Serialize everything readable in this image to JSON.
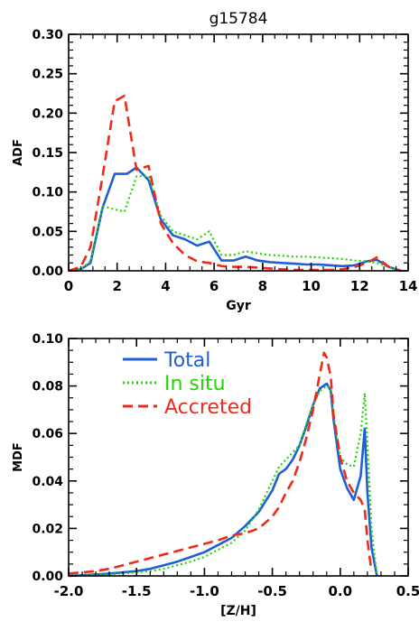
{
  "chart_data": [
    {
      "type": "line",
      "title": "g15784",
      "xlabel": "Gyr",
      "ylabel": "ADF",
      "xlim": [
        0,
        14
      ],
      "ylim": [
        0,
        0.3
      ],
      "xticks": [
        "0",
        "2",
        "4",
        "6",
        "8",
        "10",
        "12",
        "14"
      ],
      "yticks": [
        "0.00",
        "0.05",
        "0.10",
        "0.15",
        "0.20",
        "0.25",
        "0.30"
      ],
      "grid": false,
      "series": [
        {
          "name": "Total",
          "color": "#1f5fd4",
          "dash": "solid",
          "x": [
            0,
            0.5,
            0.9,
            1.4,
            1.9,
            2.4,
            2.8,
            3.3,
            3.8,
            4.3,
            4.8,
            5.3,
            5.8,
            6.3,
            6.8,
            7.3,
            7.8,
            8.3,
            8.8,
            9.3,
            9.8,
            10.3,
            10.8,
            11.3,
            11.8,
            12.3,
            12.7,
            13.2,
            13.7
          ],
          "y": [
            0,
            0.002,
            0.01,
            0.08,
            0.123,
            0.123,
            0.131,
            0.115,
            0.065,
            0.045,
            0.04,
            0.032,
            0.037,
            0.013,
            0.013,
            0.018,
            0.013,
            0.011,
            0.01,
            0.009,
            0.008,
            0.008,
            0.007,
            0.006,
            0.007,
            0.012,
            0.014,
            0.005,
            0
          ]
        },
        {
          "name": "In situ",
          "color": "#22d400",
          "dash": "dotted",
          "x": [
            0,
            0.5,
            0.9,
            1.4,
            1.9,
            2.3,
            2.8,
            3.3,
            3.8,
            4.3,
            4.8,
            5.3,
            5.8,
            6.3,
            6.8,
            7.3,
            7.8,
            8.3,
            8.8,
            9.3,
            9.8,
            10.3,
            10.8,
            11.3,
            11.8,
            12.3,
            12.7,
            13.2,
            13.7
          ],
          "y": [
            0,
            0.002,
            0.012,
            0.082,
            0.078,
            0.075,
            0.12,
            0.12,
            0.07,
            0.05,
            0.045,
            0.04,
            0.05,
            0.02,
            0.02,
            0.025,
            0.022,
            0.02,
            0.019,
            0.018,
            0.018,
            0.017,
            0.016,
            0.015,
            0.013,
            0.012,
            0.01,
            0.005,
            0
          ]
        },
        {
          "name": "Accreted",
          "color": "#ee2a1a",
          "dash": "dashed",
          "x": [
            0,
            0.5,
            0.9,
            1.4,
            1.9,
            2.3,
            2.8,
            3.3,
            3.8,
            4.3,
            4.8,
            5.3,
            5.8,
            6.3,
            6.8,
            7.3,
            7.8,
            8.3,
            8.8,
            9.3,
            9.8,
            10.3,
            10.8,
            11.3,
            11.8,
            12.3,
            12.7,
            13.2,
            13.7
          ],
          "y": [
            0,
            0.005,
            0.03,
            0.12,
            0.215,
            0.222,
            0.128,
            0.133,
            0.06,
            0.035,
            0.02,
            0.012,
            0.01,
            0.006,
            0.005,
            0.005,
            0.004,
            0.003,
            0.002,
            0.001,
            0.001,
            0.001,
            0.001,
            0.002,
            0.005,
            0.01,
            0.017,
            0.005,
            0
          ]
        }
      ]
    },
    {
      "type": "line",
      "xlabel": "[Z/H]",
      "ylabel": "MDF",
      "xlim": [
        -2.0,
        0.5
      ],
      "ylim": [
        0,
        0.1
      ],
      "xticks": [
        "-2.0",
        "-1.5",
        "-1.0",
        "-0.5",
        "0.0",
        "0.5"
      ],
      "yticks": [
        "0.00",
        "0.02",
        "0.04",
        "0.06",
        "0.08",
        "0.10"
      ],
      "grid": false,
      "legend": {
        "placement": "top-left",
        "entries": [
          "Total",
          "In situ",
          "Accreted"
        ]
      },
      "series": [
        {
          "name": "Total",
          "color": "#1f5fd4",
          "dash": "solid",
          "x": [
            -2.0,
            -1.9,
            -1.8,
            -1.7,
            -1.6,
            -1.5,
            -1.4,
            -1.3,
            -1.2,
            -1.1,
            -1.0,
            -0.9,
            -0.8,
            -0.7,
            -0.6,
            -0.5,
            -0.45,
            -0.4,
            -0.35,
            -0.3,
            -0.25,
            -0.2,
            -0.15,
            -0.1,
            -0.07,
            -0.05,
            0.0,
            0.05,
            0.1,
            0.15,
            0.18,
            0.2,
            0.23,
            0.27
          ],
          "y": [
            0.0,
            0.0003,
            0.0006,
            0.001,
            0.0015,
            0.002,
            0.003,
            0.0045,
            0.006,
            0.008,
            0.01,
            0.013,
            0.016,
            0.021,
            0.027,
            0.036,
            0.043,
            0.045,
            0.049,
            0.055,
            0.063,
            0.072,
            0.079,
            0.081,
            0.078,
            0.066,
            0.045,
            0.037,
            0.032,
            0.042,
            0.062,
            0.035,
            0.012,
            0.0
          ]
        },
        {
          "name": "In situ",
          "color": "#22d400",
          "dash": "dotted",
          "x": [
            -2.0,
            -1.9,
            -1.8,
            -1.7,
            -1.6,
            -1.5,
            -1.4,
            -1.3,
            -1.2,
            -1.1,
            -1.0,
            -0.9,
            -0.8,
            -0.7,
            -0.6,
            -0.5,
            -0.45,
            -0.4,
            -0.35,
            -0.3,
            -0.25,
            -0.2,
            -0.15,
            -0.1,
            -0.07,
            -0.05,
            0.0,
            0.05,
            0.1,
            0.15,
            0.18,
            0.2,
            0.23,
            0.27
          ],
          "y": [
            0.0,
            0.0002,
            0.0004,
            0.0007,
            0.001,
            0.0015,
            0.002,
            0.003,
            0.0045,
            0.006,
            0.008,
            0.011,
            0.014,
            0.019,
            0.028,
            0.04,
            0.046,
            0.049,
            0.052,
            0.055,
            0.064,
            0.072,
            0.078,
            0.08,
            0.079,
            0.068,
            0.05,
            0.047,
            0.046,
            0.06,
            0.077,
            0.055,
            0.02,
            0.0
          ]
        },
        {
          "name": "Accreted",
          "color": "#ee2a1a",
          "dash": "dashed",
          "x": [
            -2.0,
            -1.9,
            -1.8,
            -1.7,
            -1.6,
            -1.5,
            -1.4,
            -1.3,
            -1.2,
            -1.1,
            -1.0,
            -0.9,
            -0.8,
            -0.7,
            -0.6,
            -0.5,
            -0.45,
            -0.4,
            -0.35,
            -0.3,
            -0.25,
            -0.2,
            -0.15,
            -0.12,
            -0.1,
            -0.07,
            -0.05,
            0.0,
            0.05,
            0.1,
            0.15,
            0.18,
            0.2,
            0.23
          ],
          "y": [
            0.001,
            0.0015,
            0.002,
            0.003,
            0.0045,
            0.006,
            0.0075,
            0.009,
            0.0105,
            0.012,
            0.0135,
            0.015,
            0.017,
            0.018,
            0.02,
            0.025,
            0.029,
            0.035,
            0.04,
            0.048,
            0.058,
            0.07,
            0.085,
            0.094,
            0.092,
            0.084,
            0.068,
            0.05,
            0.04,
            0.035,
            0.032,
            0.028,
            0.015,
            0.002
          ]
        }
      ]
    }
  ]
}
